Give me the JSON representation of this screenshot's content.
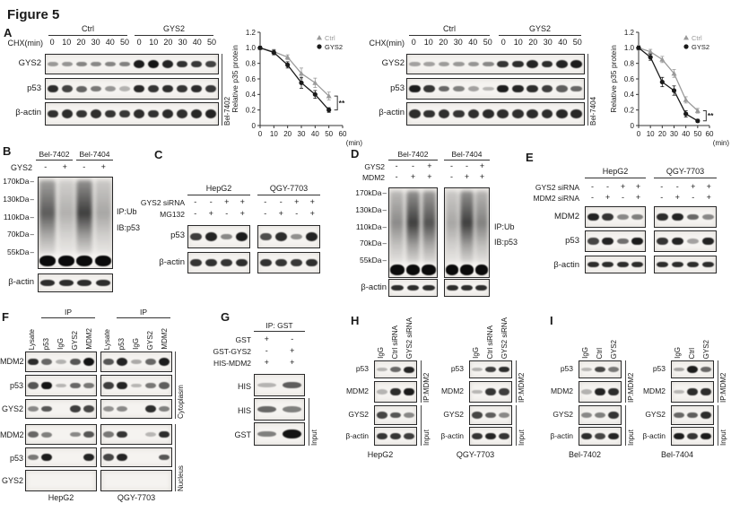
{
  "figure_title": "Figure 5",
  "colors": {
    "ctrl": "#9a9a9a",
    "gys2": "#1a1a1a",
    "band": "#141414"
  },
  "panels": {
    "A1": {
      "label": "A",
      "treatment": "CHX(min)",
      "groups": [
        "Ctrl",
        "GYS2"
      ],
      "timepoints": [
        "0",
        "10",
        "20",
        "30",
        "40",
        "50"
      ],
      "cell_line": "Bel-7402",
      "rows": [
        {
          "label": "GYS2",
          "bands": [
            0.2,
            0.22,
            0.32,
            0.3,
            0.32,
            0.34,
            0.95,
            1,
            0.9,
            0.82,
            0.78,
            0.72
          ]
        },
        {
          "label": "p53",
          "bands": [
            0.85,
            0.72,
            0.52,
            0.4,
            0.22,
            0.05,
            0.88,
            0.8,
            0.85,
            0.8,
            0.86,
            0.78
          ]
        },
        {
          "label": "β-actin",
          "bands": [
            0.82,
            0.85,
            0.8,
            0.84,
            0.8,
            0.78,
            0.85,
            0.82,
            0.86,
            0.84,
            0.88,
            0.9
          ]
        }
      ]
    },
    "A2": {
      "treatment": "CHX(min)",
      "groups": [
        "Ctrl",
        "GYS2"
      ],
      "timepoints": [
        "0",
        "10",
        "20",
        "30",
        "40",
        "50"
      ],
      "cell_line": "Bel-7404",
      "rows": [
        {
          "label": "GYS2",
          "bands": [
            0.15,
            0.15,
            0.18,
            0.2,
            0.22,
            0.3,
            0.8,
            0.85,
            0.9,
            0.85,
            0.9,
            0.95
          ]
        },
        {
          "label": "p53",
          "bands": [
            0.95,
            0.8,
            0.5,
            0.35,
            0.15,
            0.03,
            0.95,
            0.9,
            0.85,
            0.75,
            0.55,
            0.5
          ]
        },
        {
          "label": "β-actin",
          "bands": [
            0.85,
            0.82,
            0.84,
            0.8,
            0.84,
            0.86,
            0.85,
            0.84,
            0.86,
            0.85,
            0.88,
            0.88
          ]
        }
      ]
    },
    "B": {
      "label": "B",
      "groups": [
        "Bel-7402",
        "Bel-7404"
      ],
      "cond": {
        "label": "GYS2",
        "values": [
          "-",
          "+",
          "-",
          "+"
        ]
      },
      "mw": [
        "170kDa",
        "130kDa",
        "110kDa",
        "70kDa",
        "55kDa"
      ],
      "ip": "IP:Ub",
      "ib": "IB:p53",
      "smears": [
        0.8,
        0.35,
        0.95,
        0.4
      ],
      "actin": {
        "label": "β-actin",
        "bands": [
          0.85,
          0.85,
          0.85,
          0.85
        ]
      }
    },
    "C": {
      "label": "C",
      "groups": [
        "HepG2",
        "QGY-7703"
      ],
      "conds": [
        {
          "label": "GYS2 siRNA",
          "g1": [
            "-",
            "-",
            "+",
            "+"
          ],
          "g2": [
            "-",
            "-",
            "+",
            "+"
          ]
        },
        {
          "label": "MG132",
          "g1": [
            "-",
            "+",
            "-",
            "+"
          ],
          "g2": [
            "-",
            "+",
            "-",
            "+"
          ]
        }
      ],
      "rows": [
        {
          "label": "p53",
          "g1": [
            0.75,
            0.9,
            0.3,
            0.95
          ],
          "g2": [
            0.65,
            0.85,
            0.25,
            0.9
          ]
        },
        {
          "label": "β-actin",
          "g1": [
            0.8,
            0.82,
            0.8,
            0.85
          ],
          "g2": [
            0.82,
            0.8,
            0.78,
            0.84
          ]
        }
      ]
    },
    "D": {
      "label": "D",
      "groups": [
        "Bel-7402",
        "Bel-7404"
      ],
      "conds": [
        {
          "label": "GYS2",
          "g1": [
            "-",
            "-",
            "+"
          ],
          "g2": [
            "-",
            "-",
            "+"
          ]
        },
        {
          "label": "MDM2",
          "g1": [
            "-",
            "+",
            "+"
          ],
          "g2": [
            "-",
            "+",
            "+"
          ]
        }
      ],
      "mw": [
        "170kDa",
        "130kDa",
        "110kDa",
        "70kDa",
        "55kDa"
      ],
      "ip": "IP:Ub",
      "ib": "IB:p53",
      "smears1": [
        0.55,
        0.95,
        0.85
      ],
      "smears2": [
        0.4,
        0.95,
        0.6
      ],
      "actin": {
        "label": "β-actin",
        "g1": [
          0.85,
          0.85,
          0.85
        ],
        "g2": [
          0.85,
          0.85,
          0.85
        ]
      }
    },
    "E": {
      "label": "E",
      "groups": [
        "HepG2",
        "QGY-7703"
      ],
      "conds": [
        {
          "label": "GYS2 siRNA",
          "g1": [
            "-",
            "-",
            "+",
            "+"
          ],
          "g2": [
            "-",
            "-",
            "+",
            "+"
          ]
        },
        {
          "label": "MDM2 siRNA",
          "g1": [
            "-",
            "+",
            "-",
            "+"
          ],
          "g2": [
            "-",
            "+",
            "-",
            "+"
          ]
        }
      ],
      "rows": [
        {
          "label": "MDM2",
          "g1": [
            0.9,
            0.8,
            0.3,
            0.35
          ],
          "g2": [
            0.85,
            0.9,
            0.5,
            0.3
          ]
        },
        {
          "label": "p53",
          "g1": [
            0.7,
            0.9,
            0.45,
            0.95
          ],
          "g2": [
            0.8,
            0.9,
            0.15,
            0.9
          ]
        },
        {
          "label": "β-actin",
          "g1": [
            0.85,
            0.85,
            0.85,
            0.85
          ],
          "g2": [
            0.85,
            0.85,
            0.85,
            0.85
          ]
        }
      ]
    },
    "F": {
      "label": "F",
      "ip_header": "IP",
      "lane_labels": [
        "Lysate",
        "p53",
        "IgG",
        "GYS2",
        "MDM2"
      ],
      "fractions": [
        "Cytoplasm",
        "Nucleus"
      ],
      "cell_lines": [
        "HepG2",
        "QGY-7703"
      ],
      "rows": [
        {
          "label": "MDM2",
          "g1": [
            0.85,
            0.5,
            0.05,
            0.6,
            1
          ],
          "g2": [
            0.6,
            0.9,
            0.1,
            0.5,
            0.95
          ]
        },
        {
          "label": "p53",
          "g1": [
            0.6,
            1,
            0.02,
            0.5,
            0.4
          ],
          "g2": [
            0.75,
            0.9,
            0.02,
            0.4,
            0.55
          ]
        },
        {
          "label": "GYS2",
          "g1": [
            0.3,
            0.6,
            0,
            0.75,
            0.7
          ],
          "g2": [
            0.25,
            0.3,
            0,
            0.85,
            0.35
          ]
        },
        {
          "label": "MDM2",
          "g1": [
            0.5,
            0.35,
            0,
            0.3,
            0.6
          ],
          "g2": [
            0.4,
            0.8,
            0,
            0.02,
            0.85
          ]
        },
        {
          "label": "p53",
          "g1": [
            0.4,
            0.95,
            0,
            0,
            0.9
          ],
          "g2": [
            0.7,
            0.9,
            0,
            0,
            0.6
          ]
        },
        {
          "label": "GYS2",
          "g1": [
            0,
            0,
            0,
            0,
            0
          ],
          "g2": [
            0,
            0,
            0,
            0,
            0
          ]
        }
      ]
    },
    "G": {
      "label": "G",
      "header": "IP: GST",
      "conds": [
        {
          "label": "GST",
          "values": [
            "+",
            "-"
          ]
        },
        {
          "label": "GST-GYS2",
          "values": [
            "-",
            "+"
          ]
        },
        {
          "label": "HIS-MDM2",
          "values": [
            "+",
            "+"
          ]
        }
      ],
      "rows": [
        {
          "label": "HIS",
          "bands": [
            0.04,
            0.55
          ]
        },
        {
          "label": "HIS",
          "bands": [
            0.5,
            0.35
          ]
        },
        {
          "label": "GST",
          "bands": [
            0.35,
            1
          ]
        }
      ],
      "input_label": "Input"
    },
    "H": {
      "label": "H",
      "lane_labels": [
        "IgG",
        "Ctrl siRNA",
        "GYS2 siRNA"
      ],
      "row_labels": [
        "p53",
        "MDM2",
        "GYS2",
        "β-actin"
      ],
      "ip_label": "IP:MDM2",
      "input_label": "Input",
      "groups": [
        {
          "name": "HepG2",
          "rows": [
            [
              0.04,
              0.5,
              0.9
            ],
            [
              0.04,
              0.85,
              0.95
            ],
            [
              0.7,
              0.6,
              0.3
            ],
            [
              0.8,
              0.8,
              0.75
            ]
          ]
        },
        {
          "name": "QGY-7703",
          "rows": [
            [
              0.05,
              0.75,
              0.85
            ],
            [
              0.02,
              0.8,
              0.75
            ],
            [
              0.7,
              0.55,
              0.3
            ],
            [
              0.8,
              0.9,
              0.8
            ]
          ]
        }
      ]
    },
    "I": {
      "label": "I",
      "lane_labels": [
        "IgG",
        "Ctrl",
        "GYS2"
      ],
      "row_labels": [
        "p53",
        "MDM2",
        "GYS2",
        "β-actin"
      ],
      "ip_label": "IP:MDM2",
      "input_label": "Input",
      "groups": [
        {
          "name": "Bel-7402",
          "rows": [
            [
              0.02,
              0.7,
              0.4
            ],
            [
              0.05,
              0.9,
              0.85
            ],
            [
              0.3,
              0.35,
              0.8
            ],
            [
              0.85,
              0.7,
              0.9
            ]
          ]
        },
        {
          "name": "Bel-7404",
          "rows": [
            [
              0.15,
              0.95,
              0.5
            ],
            [
              0.02,
              0.85,
              0.85
            ],
            [
              0.5,
              0.55,
              0.85
            ],
            [
              0.95,
              0.8,
              0.95
            ]
          ]
        }
      ]
    }
  },
  "chart_data": [
    {
      "type": "line",
      "cell_line": "Bel-7402",
      "ylabel": "Relative p35 protein",
      "xlabel": "(min)",
      "ylim": [
        0,
        1.2
      ],
      "yticks": [
        "1.2",
        "1.0",
        "0.8",
        "0.6",
        "0.4",
        "0.2",
        "0"
      ],
      "xticks": [
        "0",
        "10",
        "20",
        "30",
        "40",
        "50",
        "60"
      ],
      "x": [
        0,
        10,
        20,
        30,
        40,
        50
      ],
      "series": [
        {
          "name": "Ctrl",
          "color": "#9a9a9a",
          "marker": "triangle",
          "values": [
            1.0,
            0.95,
            0.88,
            0.67,
            0.55,
            0.38
          ],
          "err": [
            0.02,
            0.03,
            0.03,
            0.07,
            0.06,
            0.05
          ]
        },
        {
          "name": "GYS2",
          "color": "#1a1a1a",
          "marker": "circle",
          "values": [
            1.0,
            0.94,
            0.78,
            0.55,
            0.4,
            0.2
          ],
          "err": [
            0.02,
            0.03,
            0.04,
            0.07,
            0.05,
            0.03
          ]
        }
      ],
      "significance": "**",
      "legend_position": "top-right",
      "grid": false
    },
    {
      "type": "line",
      "cell_line": "Bel-7404",
      "ylabel": "Relative p35 protein",
      "xlabel": "(min)",
      "ylim": [
        0,
        1.2
      ],
      "yticks": [
        "1.2",
        "1.0",
        "0.8",
        "0.6",
        "0.4",
        "0.2",
        "0"
      ],
      "xticks": [
        "0",
        "10",
        "20",
        "30",
        "40",
        "50",
        "60"
      ],
      "x": [
        0,
        10,
        20,
        30,
        40,
        50
      ],
      "series": [
        {
          "name": "Ctrl",
          "color": "#9a9a9a",
          "marker": "triangle",
          "values": [
            1.0,
            0.95,
            0.85,
            0.67,
            0.33,
            0.19
          ],
          "err": [
            0.03,
            0.03,
            0.04,
            0.05,
            0.04,
            0.03
          ]
        },
        {
          "name": "GYS2",
          "color": "#1a1a1a",
          "marker": "circle",
          "values": [
            1.0,
            0.88,
            0.56,
            0.45,
            0.15,
            0.06
          ],
          "err": [
            0.02,
            0.04,
            0.06,
            0.06,
            0.04,
            0.02
          ]
        }
      ],
      "significance": "**",
      "legend_position": "top-right",
      "grid": false
    }
  ]
}
